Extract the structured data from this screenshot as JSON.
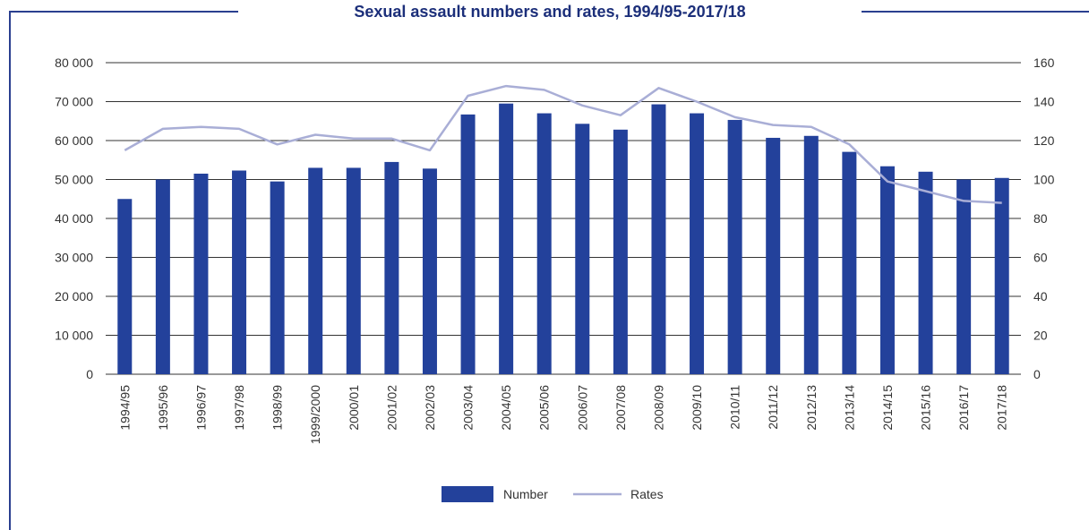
{
  "chart_data": {
    "type": "bar",
    "title": "Sexual assault numbers and rates, 1994/95-2017/18",
    "categories": [
      "1994/95",
      "1995/96",
      "1996/97",
      "1997/98",
      "1998/99",
      "1999/2000",
      "2000/01",
      "2001/02",
      "2002/03",
      "2003/04",
      "2004/05",
      "2005/06",
      "2006/07",
      "2007/08",
      "2008/09",
      "2009/10",
      "2010/11",
      "2011/12",
      "2012/13",
      "2013/14",
      "2014/15",
      "2015/16",
      "2016/17",
      "2017/18"
    ],
    "series": [
      {
        "name": "Number",
        "type": "bar",
        "axis": "left",
        "color": "#23419b",
        "values": [
          45000,
          50000,
          51500,
          52300,
          49500,
          53000,
          53000,
          54500,
          52800,
          66700,
          69500,
          67000,
          64300,
          62800,
          69300,
          67000,
          65300,
          60700,
          61200,
          57100,
          53400,
          52000,
          50000,
          50400
        ]
      },
      {
        "name": "Rates",
        "type": "line",
        "axis": "right",
        "color": "#a9aed6",
        "values": [
          115,
          126,
          127,
          126,
          118,
          123,
          121,
          121,
          115,
          143,
          148,
          146,
          138,
          133,
          147,
          140,
          132,
          128,
          127,
          118,
          99,
          94,
          89,
          88
        ]
      }
    ],
    "y_left": {
      "min": 0,
      "max": 80000,
      "ticks": [
        "0",
        "10 000",
        "20 000",
        "30 000",
        "40 000",
        "50 000",
        "60 000",
        "70 000",
        "80 000"
      ]
    },
    "y_right": {
      "min": 0,
      "max": 160,
      "ticks": [
        "0",
        "20",
        "40",
        "60",
        "80",
        "100",
        "120",
        "140",
        "160"
      ]
    },
    "grid": true,
    "legend": {
      "position": "bottom-center",
      "entries": [
        "Number",
        "Rates"
      ]
    }
  },
  "colors": {
    "frame": "#2a3f8f",
    "title": "#1c2f7a",
    "grid": "#333333"
  }
}
